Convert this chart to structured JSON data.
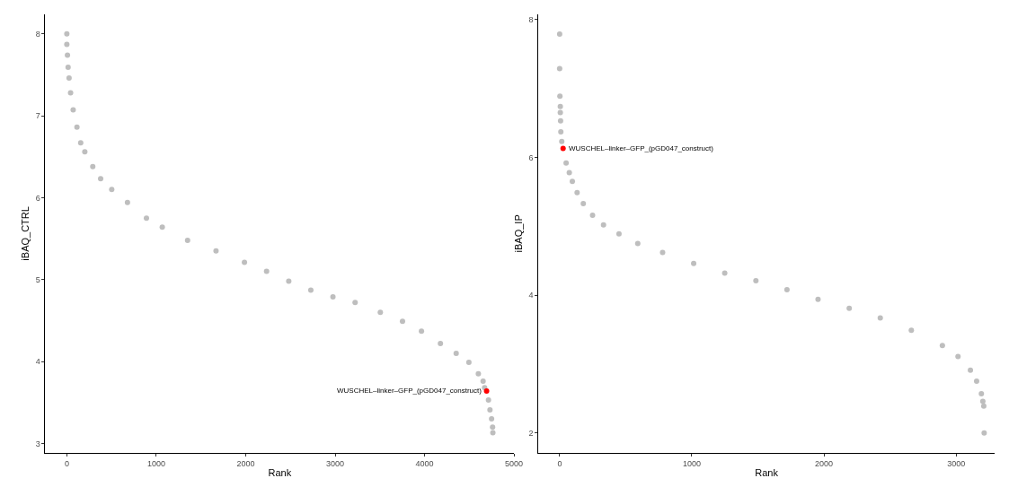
{
  "chart_data": [
    {
      "type": "scatter",
      "xlabel": "Rank",
      "ylabel": "iBAQ_CTRL",
      "xlim": [
        -240,
        5000
      ],
      "xticks": [
        0,
        1000,
        2000,
        3000,
        4000,
        5000
      ],
      "ylim": [
        2.885,
        8.24
      ],
      "yticks": [
        3,
        4,
        5,
        6,
        7,
        8
      ],
      "marker": "circle",
      "series": [
        {
          "color": "#bebebe",
          "x": [
            0,
            0,
            7,
            14,
            25,
            42,
            71,
            113,
            155,
            201,
            290,
            378,
            502,
            678,
            890,
            1067,
            1350,
            1668,
            1986,
            2233,
            2481,
            2728,
            2975,
            3223,
            3505,
            3753,
            3965,
            4177,
            4353,
            4495,
            4601,
            4654,
            4671,
            4714,
            4731,
            4749,
            4760,
            4763
          ],
          "values": [
            8.0,
            7.87,
            7.74,
            7.59,
            7.46,
            7.28,
            7.07,
            6.86,
            6.67,
            6.56,
            6.38,
            6.23,
            6.1,
            5.94,
            5.75,
            5.64,
            5.48,
            5.35,
            5.21,
            5.1,
            4.98,
            4.87,
            4.79,
            4.72,
            4.6,
            4.49,
            4.37,
            4.22,
            4.1,
            3.99,
            3.85,
            3.76,
            3.68,
            3.53,
            3.41,
            3.3,
            3.2,
            3.13
          ]
        },
        {
          "color": "#ff0000",
          "x": [
            4693
          ],
          "values": [
            3.64
          ]
        }
      ],
      "annotations": [
        {
          "text": "WUSCHEL–linker–GFP_(pGD047_construct)",
          "x": 4693,
          "y": 3.64
        }
      ]
    },
    {
      "type": "scatter",
      "xlabel": "Rank",
      "ylabel": "iBAQ_IP",
      "xlim": [
        -160,
        3290
      ],
      "xticks": [
        0,
        1000,
        2000,
        3000
      ],
      "ylim": [
        1.71,
        8.08
      ],
      "yticks": [
        2,
        4,
        6,
        8
      ],
      "marker": "circle",
      "series": [
        {
          "color": "#bebebe",
          "x": [
            0,
            0,
            2,
            5,
            5,
            7,
            9,
            16,
            49,
            73,
            96,
            132,
            179,
            249,
            332,
            449,
            591,
            779,
            1014,
            1249,
            1485,
            1720,
            1955,
            2191,
            2426,
            2661,
            2896,
            3014,
            3108,
            3155,
            3191,
            3202,
            3209,
            3212
          ],
          "values": [
            7.79,
            7.29,
            6.89,
            6.74,
            6.65,
            6.53,
            6.37,
            6.23,
            5.92,
            5.78,
            5.65,
            5.49,
            5.33,
            5.16,
            5.02,
            4.89,
            4.75,
            4.62,
            4.46,
            4.32,
            4.21,
            4.08,
            3.94,
            3.81,
            3.67,
            3.49,
            3.27,
            3.11,
            2.91,
            2.75,
            2.57,
            2.46,
            2.39,
            2.0
          ]
        },
        {
          "color": "#ff0000",
          "x": [
            26
          ],
          "values": [
            6.13
          ]
        }
      ],
      "annotations": [
        {
          "text": "WUSCHEL–linker–GFP_(pGD047_construct)",
          "x": 26,
          "y": 6.13
        }
      ]
    }
  ]
}
